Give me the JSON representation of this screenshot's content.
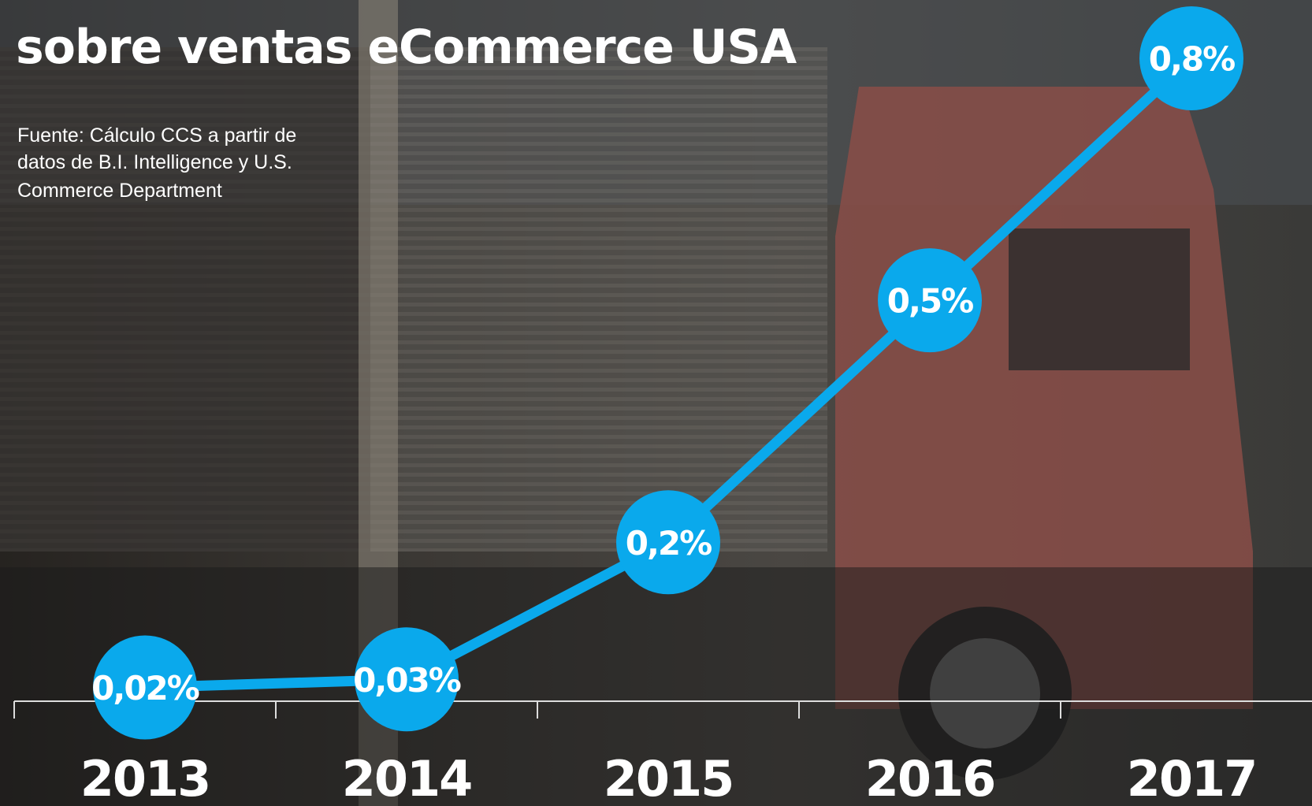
{
  "chart_data": {
    "type": "line",
    "title": "sobre ventas eCommerce USA",
    "source": [
      "Fuente: Cálculo CCS a partir de",
      "datos de B.I. Intelligence y U.S.",
      "Commerce Department"
    ],
    "categories": [
      "2013",
      "2014",
      "2015",
      "2016",
      "2017"
    ],
    "values": [
      0.02,
      0.03,
      0.2,
      0.5,
      0.8
    ],
    "value_labels": [
      "0,02%",
      "0,03%",
      "0,2%",
      "0,5%",
      "0,8%"
    ],
    "color": "#0aa9ec",
    "ylim": [
      0,
      0.8
    ]
  }
}
